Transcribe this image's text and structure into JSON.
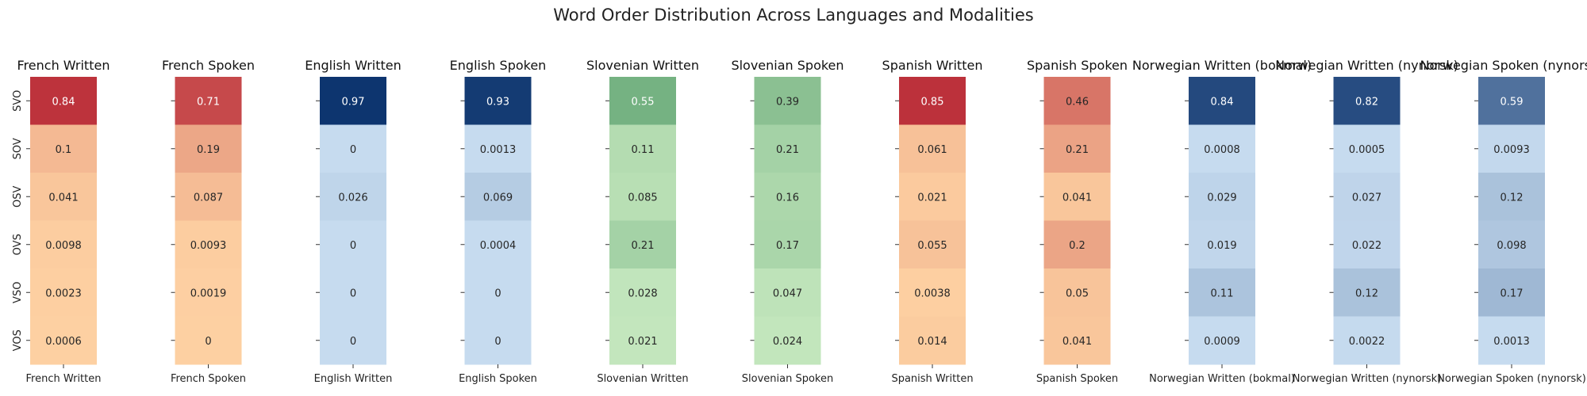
{
  "chart_data": {
    "type": "heatmap",
    "title": "Word Order Distribution Across Languages and Modalities",
    "row_labels": [
      "SVO",
      "SOV",
      "OSV",
      "OVS",
      "VSO",
      "VOS"
    ],
    "panels": [
      {
        "name": "French Written",
        "xlabel": "French Written",
        "colormap": "orange-red",
        "values": [
          "0.84",
          "0.1",
          "0.041",
          "0.0098",
          "0.0023",
          "0.0006"
        ]
      },
      {
        "name": "French Spoken",
        "xlabel": "French Spoken",
        "colormap": "orange-red",
        "values": [
          "0.71",
          "0.19",
          "0.087",
          "0.0093",
          "0.0019",
          "0"
        ]
      },
      {
        "name": "English Written",
        "xlabel": "English Written",
        "colormap": "blue",
        "values": [
          "0.97",
          "0",
          "0.026",
          "0",
          "0",
          "0"
        ]
      },
      {
        "name": "English Spoken",
        "xlabel": "English Spoken",
        "colormap": "blue",
        "values": [
          "0.93",
          "0.0013",
          "0.069",
          "0.0004",
          "0",
          "0"
        ]
      },
      {
        "name": "Slovenian Written",
        "xlabel": "Slovenian Written",
        "colormap": "green",
        "values": [
          "0.55",
          "0.11",
          "0.085",
          "0.21",
          "0.028",
          "0.021"
        ]
      },
      {
        "name": "Slovenian Spoken",
        "xlabel": "Slovenian Spoken",
        "colormap": "green",
        "values": [
          "0.39",
          "0.21",
          "0.16",
          "0.17",
          "0.047",
          "0.024"
        ]
      },
      {
        "name": "Spanish Written",
        "xlabel": "Spanish Written",
        "colormap": "orange-red",
        "values": [
          "0.85",
          "0.061",
          "0.021",
          "0.055",
          "0.0038",
          "0.014"
        ]
      },
      {
        "name": "Spanish Spoken",
        "xlabel": "Spanish Spoken",
        "colormap": "orange-red",
        "values": [
          "0.46",
          "0.21",
          "0.041",
          "0.2",
          "0.05",
          "0.041"
        ]
      },
      {
        "name": "Norwegian Written (bokmal)",
        "xlabel": "Norwegian Written (bokmal)",
        "colormap": "blue",
        "values": [
          "0.84",
          "0.0008",
          "0.029",
          "0.019",
          "0.11",
          "0.0009"
        ]
      },
      {
        "name": "Norwegian Written (nynorsk)",
        "xlabel": "Norwegian Written (nynorsk)",
        "colormap": "blue",
        "values": [
          "0.82",
          "0.0005",
          "0.027",
          "0.022",
          "0.12",
          "0.0022"
        ]
      },
      {
        "name": "Norwegian Spoken (nynorsk)",
        "xlabel": "Norwegian Spoken (nynorsk)",
        "colormap": "blue",
        "values": [
          "0.59",
          "0.0093",
          "0.12",
          "0.098",
          "0.17",
          "0.0013"
        ]
      }
    ],
    "color_range": [
      0,
      1
    ],
    "colormaps": {
      "orange-red": [
        "#fdd0a2",
        "#b2182b"
      ],
      "blue": [
        "#c6dbef",
        "#08306b"
      ],
      "green": [
        "#c7e9c0",
        "#3a8a55"
      ]
    },
    "legend": "none",
    "grid": false
  }
}
